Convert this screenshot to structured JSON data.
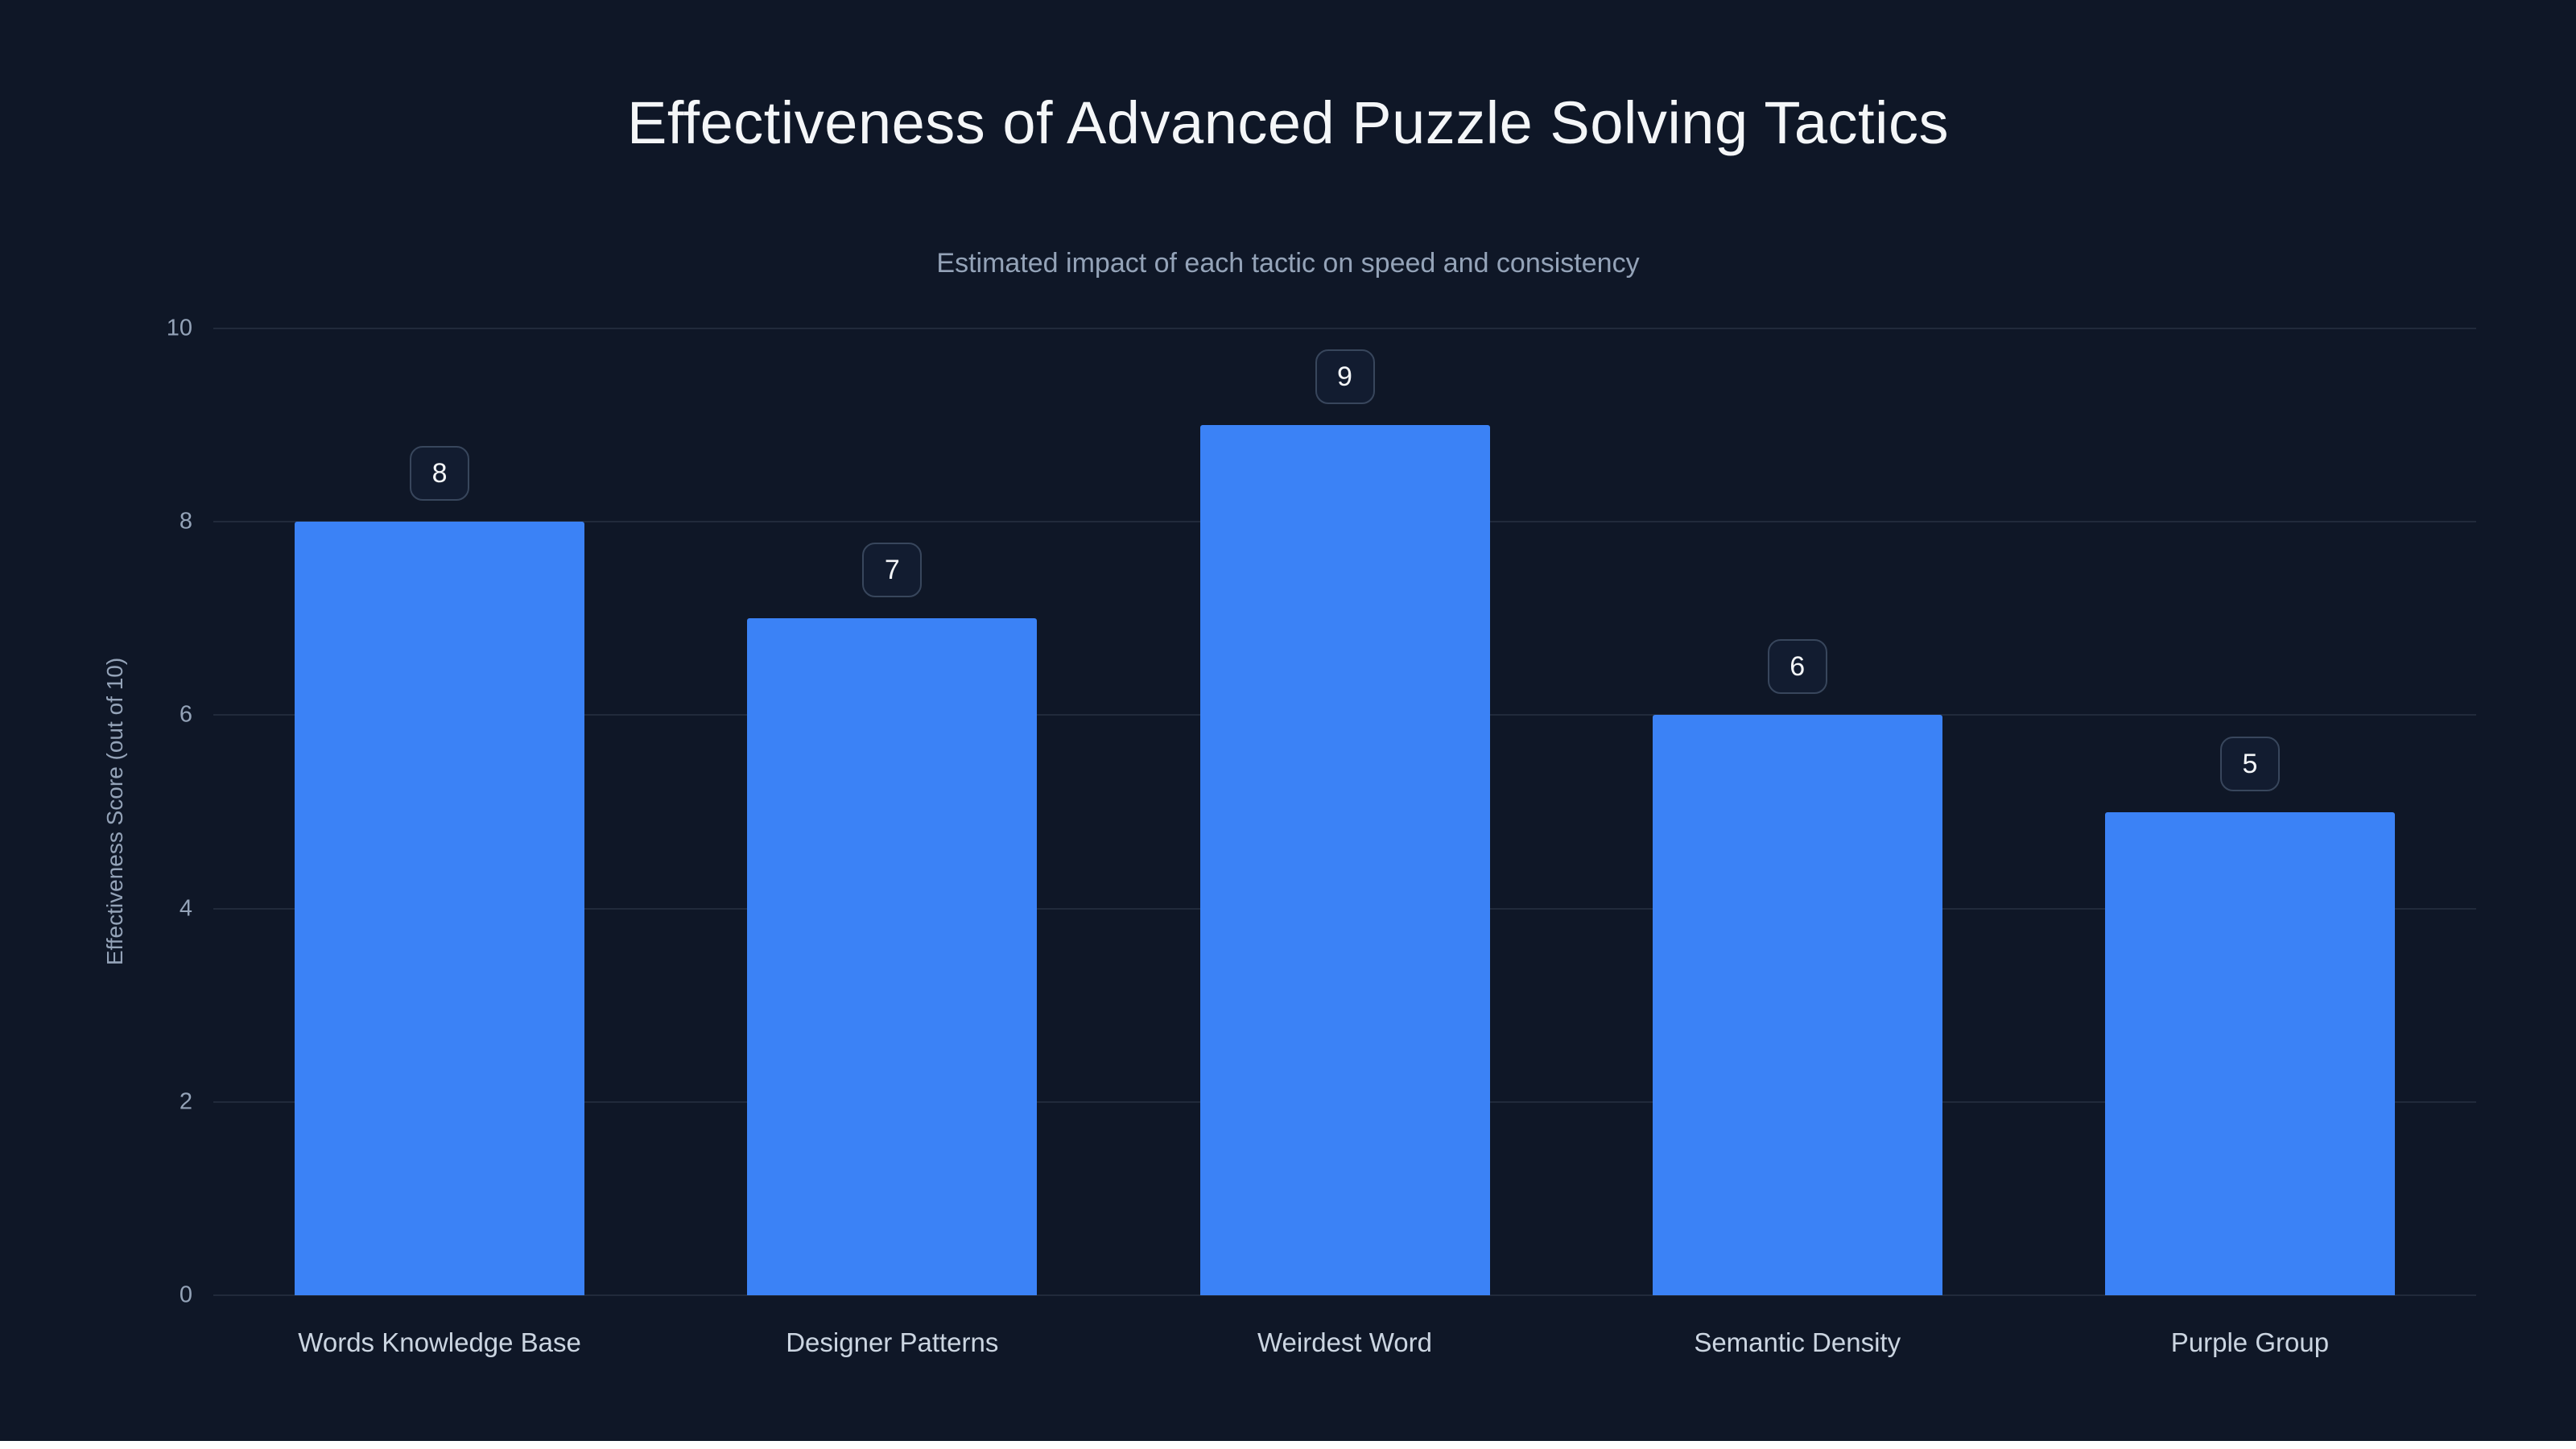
{
  "page": {
    "title": "Effectiveness of Advanced Puzzle Solving Tactics",
    "subtitle": "Estimated impact of each tactic on speed and consistency"
  },
  "chart_data": {
    "type": "bar",
    "title": "Effectiveness of Advanced Puzzle Solving Tactics",
    "subtitle": "Estimated impact of each tactic on speed and consistency",
    "categories": [
      "Words Knowledge Base",
      "Designer Patterns",
      "Weirdest Word",
      "Semantic Density",
      "Purple Group"
    ],
    "values": [
      8,
      7,
      9,
      6,
      5
    ],
    "value_labels": [
      8,
      7,
      9,
      6,
      5
    ],
    "xlabel": "",
    "ylabel": "Effectiveness Score (out of 10)",
    "ylim": [
      0,
      10
    ],
    "yticks": [
      0,
      2,
      4,
      6,
      8,
      10
    ],
    "grid": "horizontal",
    "legend": "none",
    "bar_color": "#3b82f6",
    "background_color": "#0f1727",
    "badge_border_color": "#38465c"
  }
}
